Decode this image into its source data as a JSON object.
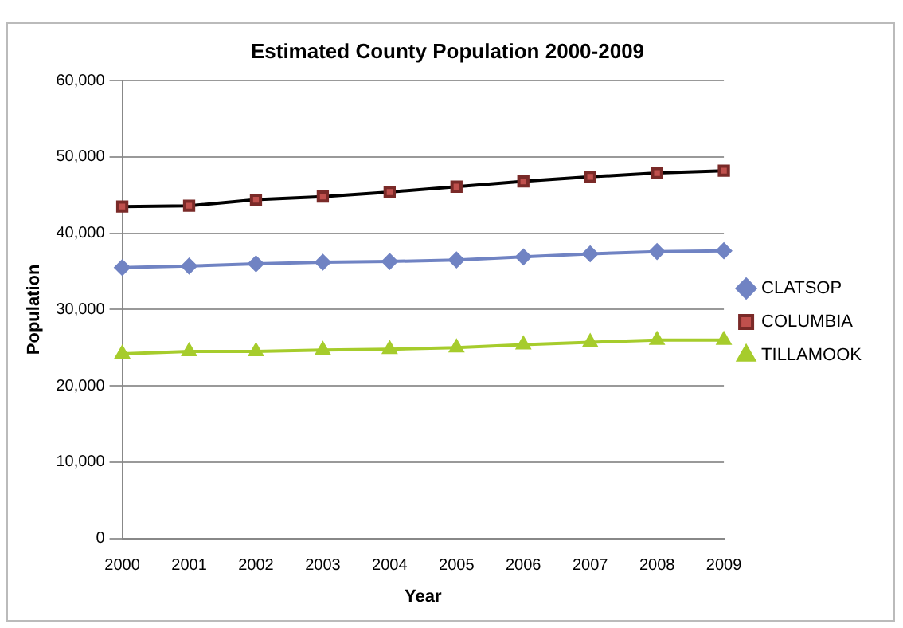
{
  "chart_data": {
    "type": "line",
    "title": "Estimated County Population 2000-2009",
    "xlabel": "Year",
    "ylabel": "Population",
    "categories": [
      "2000",
      "2001",
      "2002",
      "2003",
      "2004",
      "2005",
      "2006",
      "2007",
      "2008",
      "2009"
    ],
    "series": [
      {
        "name": "CLATSOP",
        "color": "#7083c3",
        "marker": "diamond",
        "values": [
          35500,
          35700,
          36000,
          36200,
          36300,
          36500,
          36900,
          37300,
          37600,
          37700
        ]
      },
      {
        "name": "COLUMBIA",
        "color": "#000000",
        "marker": "square",
        "values": [
          43500,
          43600,
          44400,
          44800,
          45400,
          46100,
          46800,
          47400,
          47900,
          48200
        ]
      },
      {
        "name": "TILLAMOOK",
        "color": "#a6cc2c",
        "marker": "triangle",
        "values": [
          24200,
          24500,
          24500,
          24700,
          24800,
          25000,
          25400,
          25700,
          26000,
          26000
        ]
      }
    ],
    "ylim": [
      0,
      60000
    ],
    "yticks": [
      0,
      {
        "value": 10000,
        "label": "10,000"
      },
      {
        "value": 20000,
        "label": "20,000"
      },
      {
        "value": 30000,
        "label": "30,000"
      },
      {
        "value": 40000,
        "label": "40,000"
      },
      {
        "value": 50000,
        "label": "50,000"
      },
      {
        "value": 60000,
        "label": "60,000"
      }
    ],
    "grid": "y",
    "legend": "right"
  }
}
